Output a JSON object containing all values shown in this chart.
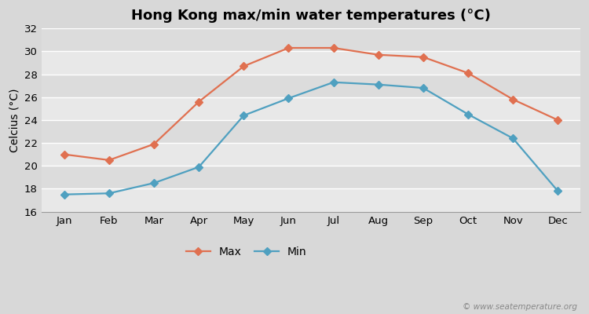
{
  "title": "Hong Kong max/min water temperatures (°C)",
  "ylabel": "Celcius (°C)",
  "months": [
    "Jan",
    "Feb",
    "Mar",
    "Apr",
    "May",
    "Jun",
    "Jul",
    "Aug",
    "Sep",
    "Oct",
    "Nov",
    "Dec"
  ],
  "max_temps": [
    21.0,
    20.5,
    21.9,
    25.6,
    28.7,
    30.3,
    30.3,
    29.7,
    29.5,
    28.1,
    25.8,
    24.0
  ],
  "min_temps": [
    17.5,
    17.6,
    18.5,
    19.9,
    24.4,
    25.9,
    27.3,
    27.1,
    26.8,
    24.5,
    22.4,
    17.8
  ],
  "max_color": "#E07050",
  "min_color": "#4FA0C0",
  "bg_color": "#D8D8D8",
  "plot_bg_color": "#E8E8E8",
  "stripe_color": "#DCDCDC",
  "grid_line_color": "#C8C8C8",
  "ylim": [
    16,
    32
  ],
  "yticks": [
    16,
    18,
    20,
    22,
    24,
    26,
    28,
    30,
    32
  ],
  "marker": "D",
  "markersize": 5,
  "linewidth": 1.6,
  "legend_labels": [
    "Max",
    "Min"
  ],
  "watermark": "© www.seatemperature.org",
  "title_fontsize": 13,
  "label_fontsize": 10,
  "tick_fontsize": 9.5,
  "watermark_fontsize": 7.5
}
